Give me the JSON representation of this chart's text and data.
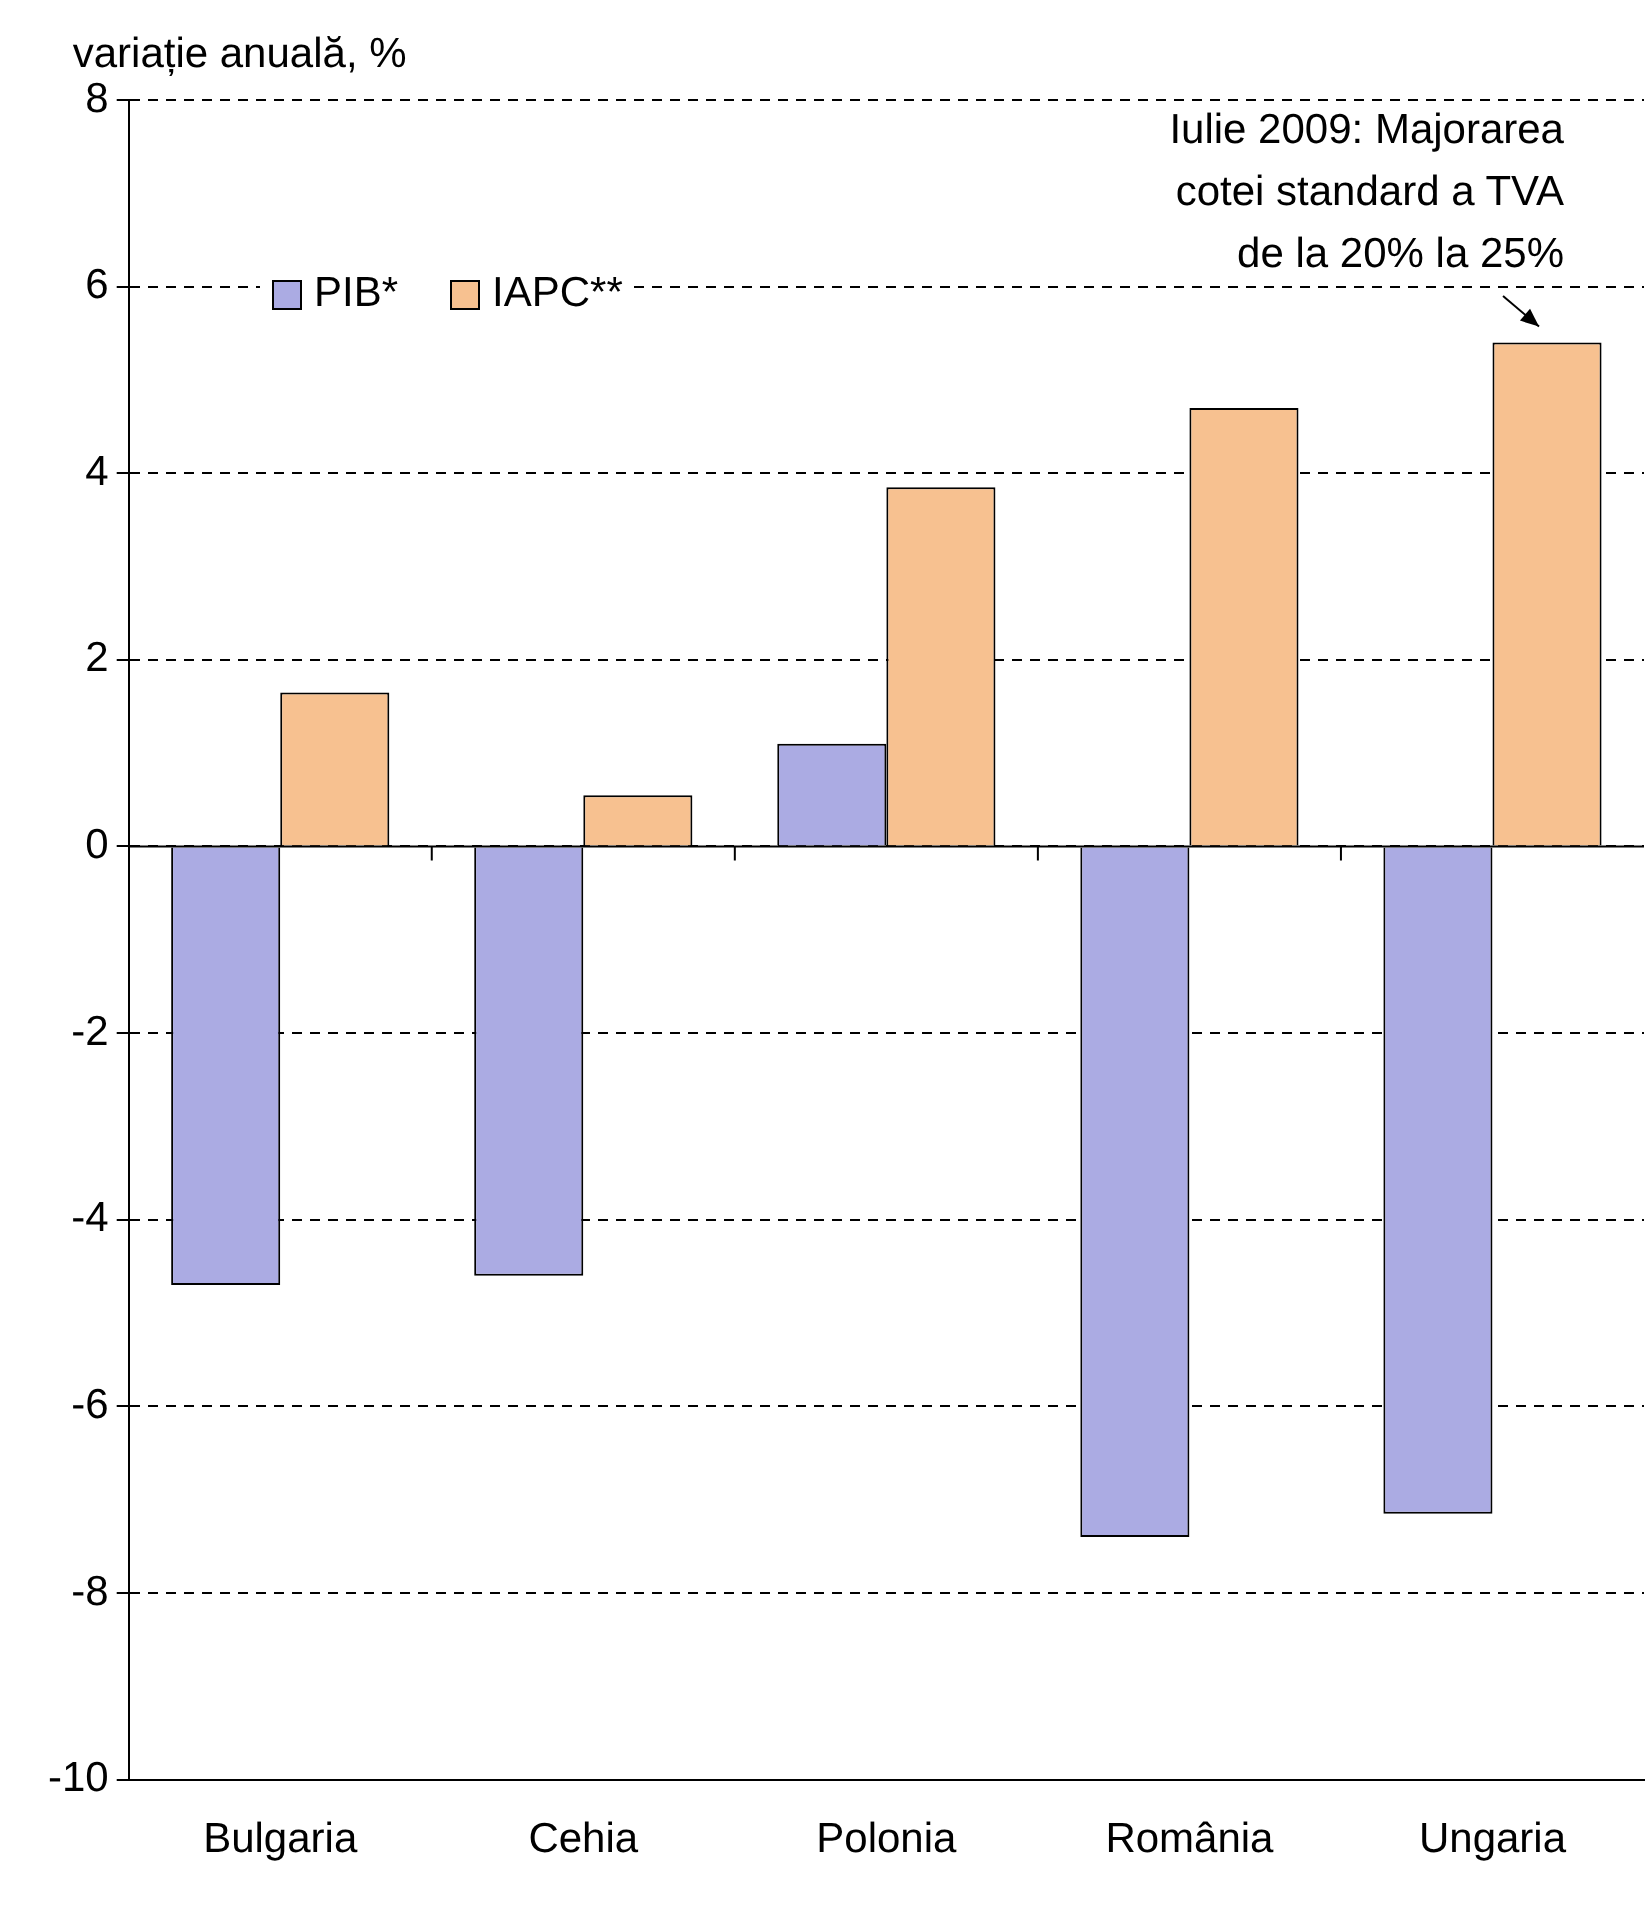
{
  "chart_data": {
    "type": "bar",
    "ylabel": "variație anuală, %",
    "categories": [
      "Bulgaria",
      "Cehia",
      "Polonia",
      "România",
      "Ungaria"
    ],
    "series": [
      {
        "name": "PIB*",
        "color": "#ababe3",
        "values": [
          -4.7,
          -4.6,
          1.1,
          -7.4,
          -7.15
        ]
      },
      {
        "name": "IAPC**",
        "color": "#f7c190",
        "values": [
          1.65,
          0.55,
          3.85,
          4.7,
          5.4
        ]
      }
    ],
    "ylim": [
      -10,
      8
    ],
    "yticks": [
      -10,
      -8,
      -6,
      -4,
      -2,
      0,
      2,
      4,
      6,
      8
    ],
    "grid": "y",
    "legend": "top left",
    "annotations": [
      {
        "text": "Iulie 2009: Majorarea cotei standard a TVA de la 20% la 25%",
        "x": "Ungaria",
        "y": 5.4
      }
    ]
  }
}
